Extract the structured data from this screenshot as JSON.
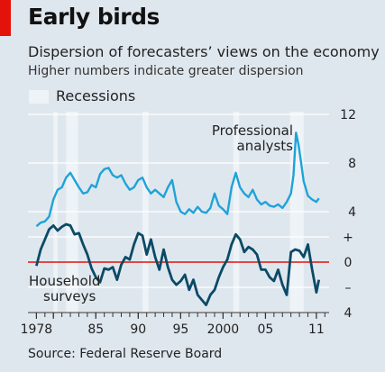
{
  "header": {
    "title": "Early birds",
    "subtitle": "Dispersion of forecasters’ views on the economy",
    "note": "Higher numbers indicate greater dispersion",
    "legend_label": "Recessions"
  },
  "footer": {
    "source": "Source: Federal Reserve Board"
  },
  "colors": {
    "background": "#dfe7ee",
    "professional": "#1fa3d8",
    "household": "#0b4a66",
    "zero_line": "#e3120b",
    "recession": "#eef3f7",
    "grid": "#ffffff",
    "brand_tag": "#e3120b"
  },
  "chart_data": {
    "type": "line",
    "x_unit": "year",
    "xlim": [
      1977,
      2012.5
    ],
    "x_ticks": [
      {
        "value": 1978,
        "label": "1978"
      },
      {
        "value": 1980,
        "label": ""
      },
      {
        "value": 1985,
        "label": "85"
      },
      {
        "value": 1990,
        "label": "90"
      },
      {
        "value": 1995,
        "label": "95"
      },
      {
        "value": 2000,
        "label": "2000"
      },
      {
        "value": 2005,
        "label": "05"
      },
      {
        "value": 2011,
        "label": "11"
      }
    ],
    "axes": {
      "upper": {
        "ylim": [
          0,
          12
        ],
        "ticks": [
          {
            "value": 4,
            "label": "4"
          },
          {
            "value": 8,
            "label": "8"
          },
          {
            "value": 12,
            "label": "12"
          }
        ]
      },
      "lower": {
        "ylim": [
          -4,
          3
        ],
        "ticks": [
          {
            "value": 2,
            "label": "+"
          },
          {
            "value": 0,
            "label": "0"
          },
          {
            "value": -2,
            "label": "–"
          },
          {
            "value": -4,
            "label": "4"
          }
        ]
      }
    },
    "recessions": [
      [
        1980.0,
        1980.5
      ],
      [
        1981.5,
        1982.9
      ],
      [
        1990.5,
        1991.2
      ],
      [
        2001.2,
        2001.9
      ],
      [
        2007.9,
        2009.5
      ]
    ],
    "series": [
      {
        "name": "Professional analysts",
        "axis": "upper",
        "label_lines": [
          "Professional",
          "analysts"
        ],
        "x": [
          1978.0,
          1978.5,
          1979.0,
          1979.5,
          1980.0,
          1980.5,
          1981.0,
          1981.5,
          1982.0,
          1982.5,
          1983.0,
          1983.5,
          1984.0,
          1984.5,
          1985.0,
          1985.5,
          1986.0,
          1986.5,
          1987.0,
          1987.5,
          1988.0,
          1988.5,
          1989.0,
          1989.5,
          1990.0,
          1990.5,
          1991.0,
          1991.5,
          1992.0,
          1992.5,
          1993.0,
          1993.5,
          1994.0,
          1994.5,
          1995.0,
          1995.5,
          1996.0,
          1996.5,
          1997.0,
          1997.5,
          1998.0,
          1998.5,
          1999.0,
          1999.5,
          2000.0,
          2000.5,
          2001.0,
          2001.5,
          2002.0,
          2002.5,
          2003.0,
          2003.5,
          2004.0,
          2004.5,
          2005.0,
          2005.5,
          2006.0,
          2006.5,
          2007.0,
          2007.5,
          2008.0,
          2008.3,
          2008.6,
          2008.9,
          2009.2,
          2009.5,
          2009.8,
          2010.0,
          2010.5,
          2011.0,
          2011.3
        ],
        "values": [
          2.8,
          3.1,
          3.2,
          3.6,
          5.0,
          5.8,
          6.0,
          6.8,
          7.2,
          6.6,
          6.0,
          5.5,
          5.6,
          6.2,
          6.0,
          7.1,
          7.5,
          7.6,
          7.0,
          6.8,
          7.0,
          6.3,
          5.8,
          6.0,
          6.6,
          6.8,
          6.0,
          5.5,
          5.8,
          5.5,
          5.2,
          6.0,
          6.6,
          4.8,
          4.0,
          3.8,
          4.2,
          3.9,
          4.4,
          4.0,
          3.9,
          4.3,
          5.5,
          4.5,
          4.2,
          3.8,
          6.0,
          7.2,
          6.0,
          5.5,
          5.2,
          5.8,
          5.0,
          4.6,
          4.8,
          4.5,
          4.4,
          4.6,
          4.3,
          4.8,
          5.5,
          7.0,
          10.5,
          9.5,
          8.0,
          6.5,
          5.8,
          5.3,
          5.0,
          4.8,
          5.1
        ]
      },
      {
        "name": "Household surveys",
        "axis": "lower",
        "label_lines": [
          "Household",
          "surveys"
        ],
        "x": [
          1978.0,
          1978.5,
          1979.0,
          1979.5,
          1980.0,
          1980.5,
          1981.0,
          1981.5,
          1982.0,
          1982.5,
          1983.0,
          1983.5,
          1984.0,
          1984.5,
          1985.0,
          1985.5,
          1986.0,
          1986.5,
          1987.0,
          1987.5,
          1988.0,
          1988.5,
          1989.0,
          1989.5,
          1990.0,
          1990.5,
          1991.0,
          1991.5,
          1992.0,
          1992.5,
          1993.0,
          1993.5,
          1994.0,
          1994.5,
          1995.0,
          1995.5,
          1996.0,
          1996.5,
          1997.0,
          1997.5,
          1998.0,
          1998.5,
          1999.0,
          1999.5,
          2000.0,
          2000.5,
          2001.0,
          2001.5,
          2002.0,
          2002.5,
          2003.0,
          2003.5,
          2004.0,
          2004.5,
          2005.0,
          2005.5,
          2006.0,
          2006.5,
          2007.0,
          2007.5,
          2008.0,
          2008.5,
          2009.0,
          2009.5,
          2010.0,
          2010.5,
          2011.0,
          2011.3
        ],
        "values": [
          -0.3,
          1.0,
          1.8,
          2.6,
          2.9,
          2.5,
          2.8,
          3.0,
          2.9,
          2.2,
          2.3,
          1.4,
          0.6,
          -0.5,
          -1.2,
          -1.6,
          -0.5,
          -0.6,
          -0.4,
          -1.4,
          -0.2,
          0.4,
          0.2,
          1.4,
          2.3,
          2.1,
          0.6,
          1.8,
          0.4,
          -0.6,
          1.0,
          -0.4,
          -1.4,
          -1.8,
          -1.5,
          -1.0,
          -2.2,
          -1.4,
          -2.6,
          -3.0,
          -3.4,
          -2.6,
          -2.2,
          -1.2,
          -0.4,
          0.2,
          1.4,
          2.2,
          1.8,
          0.8,
          1.2,
          1.0,
          0.6,
          -0.6,
          -0.6,
          -1.2,
          -1.5,
          -0.6,
          -1.8,
          -2.6,
          0.8,
          1.0,
          0.9,
          0.4,
          1.4,
          -0.6,
          -2.4,
          -1.4
        ]
      }
    ]
  }
}
